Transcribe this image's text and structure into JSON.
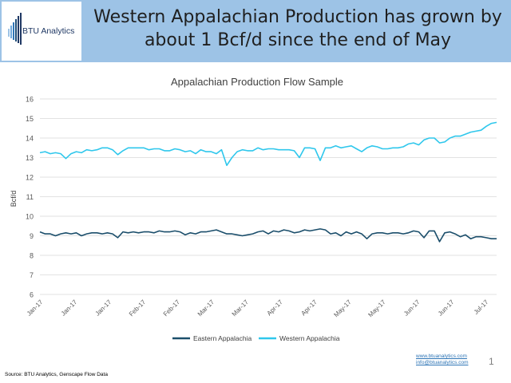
{
  "header": {
    "title_line1": "Western Appalachian Production has grown by",
    "title_line2": "about 1 Bcf/d since the end of May",
    "logo_text": "BTU Analytics",
    "background_color": "#9dc3e6"
  },
  "footer": {
    "website": "www.btuanalytics.com",
    "email": "info@btuanalytics.com",
    "page_number": "1",
    "source": "Source: BTU Analytics, Genscape Flow Data"
  },
  "chart_data": {
    "type": "line",
    "title": "Appalachian Production Flow Sample",
    "xlabel": "",
    "ylabel": "Bcf/d",
    "ylim": [
      6,
      16
    ],
    "yticks": [
      6,
      7,
      8,
      9,
      10,
      11,
      12,
      13,
      14,
      15,
      16
    ],
    "grid": true,
    "legend_position": "bottom",
    "x_tick_labels": [
      "Jan-17",
      "Jan-17",
      "Jan-17",
      "Feb-17",
      "Feb-17",
      "Mar-17",
      "Mar-17",
      "Apr-17",
      "Apr-17",
      "May-17",
      "May-17",
      "Jun-17",
      "Jun-17",
      "Jul-17"
    ],
    "series": [
      {
        "name": "Eastern Appalachia",
        "color": "#1b4e6b",
        "values": [
          9.2,
          9.1,
          9.1,
          9.0,
          9.1,
          9.15,
          9.1,
          9.15,
          9.0,
          9.1,
          9.15,
          9.15,
          9.1,
          9.15,
          9.1,
          8.9,
          9.2,
          9.15,
          9.2,
          9.15,
          9.2,
          9.2,
          9.15,
          9.25,
          9.2,
          9.2,
          9.25,
          9.2,
          9.05,
          9.15,
          9.1,
          9.2,
          9.2,
          9.25,
          9.3,
          9.2,
          9.1,
          9.1,
          9.05,
          9.0,
          9.05,
          9.1,
          9.2,
          9.25,
          9.1,
          9.25,
          9.2,
          9.3,
          9.25,
          9.15,
          9.2,
          9.3,
          9.25,
          9.3,
          9.35,
          9.3,
          9.1,
          9.15,
          9.0,
          9.2,
          9.1,
          9.2,
          9.1,
          8.85,
          9.1,
          9.15,
          9.15,
          9.1,
          9.15,
          9.15,
          9.1,
          9.15,
          9.25,
          9.2,
          8.9,
          9.25,
          9.25,
          8.7,
          9.15,
          9.2,
          9.1,
          8.95,
          9.05,
          8.85,
          8.95,
          8.95,
          8.9,
          8.85,
          8.85
        ]
      },
      {
        "name": "Western Appalachia",
        "color": "#2fc7ec",
        "values": [
          13.25,
          13.3,
          13.2,
          13.25,
          13.2,
          12.95,
          13.2,
          13.3,
          13.25,
          13.4,
          13.35,
          13.4,
          13.5,
          13.5,
          13.4,
          13.15,
          13.35,
          13.5,
          13.5,
          13.5,
          13.5,
          13.4,
          13.45,
          13.45,
          13.35,
          13.35,
          13.45,
          13.4,
          13.3,
          13.35,
          13.2,
          13.4,
          13.3,
          13.3,
          13.2,
          13.4,
          12.6,
          13.0,
          13.3,
          13.4,
          13.35,
          13.35,
          13.5,
          13.4,
          13.45,
          13.45,
          13.4,
          13.4,
          13.4,
          13.35,
          13.0,
          13.5,
          13.5,
          13.45,
          12.85,
          13.5,
          13.5,
          13.6,
          13.5,
          13.55,
          13.6,
          13.45,
          13.3,
          13.5,
          13.6,
          13.55,
          13.45,
          13.45,
          13.5,
          13.5,
          13.55,
          13.7,
          13.75,
          13.65,
          13.9,
          14.0,
          14.0,
          13.75,
          13.8,
          14.0,
          14.1,
          14.1,
          14.2,
          14.3,
          14.35,
          14.4,
          14.6,
          14.75,
          14.8
        ]
      }
    ]
  }
}
